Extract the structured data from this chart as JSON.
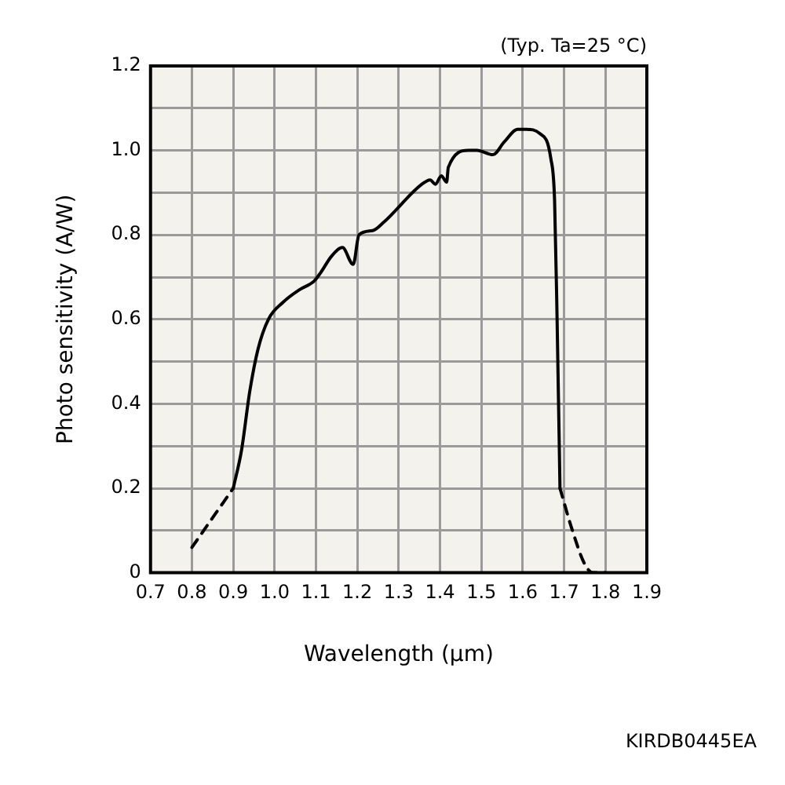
{
  "chart_data": {
    "type": "line",
    "xlabel": "Wavelength (μm)",
    "ylabel": "Photo sensitivity (A/W)",
    "annotations": [
      "(Typ. Ta=25 °C)",
      "KIRDB0445EA"
    ],
    "series": [
      {
        "color": "#000000",
        "line_style": "dashed",
        "x": [
          0.8,
          0.85,
          0.9
        ],
        "values": [
          0.06,
          0.13,
          0.2
        ]
      },
      {
        "color": "#000000",
        "line_style": "solid",
        "x": [
          0.9,
          0.92,
          0.94,
          0.96,
          0.985,
          1.02,
          1.06,
          1.095,
          1.111,
          1.138,
          1.164,
          1.19,
          1.204,
          1.237,
          1.264,
          1.356,
          1.376,
          1.389,
          1.403,
          1.416,
          1.42,
          1.469,
          1.489,
          1.528,
          1.555,
          1.588,
          1.608,
          1.641,
          1.668,
          1.677,
          1.683,
          1.69
        ],
        "values": [
          0.2,
          0.29,
          0.43,
          0.53,
          0.6,
          0.64,
          0.67,
          0.69,
          0.71,
          0.75,
          0.77,
          0.73,
          0.8,
          0.81,
          0.83,
          0.92,
          0.93,
          0.92,
          0.94,
          0.925,
          0.96,
          1.0,
          1.0,
          0.99,
          1.02,
          1.05,
          1.05,
          1.04,
          0.98,
          0.88,
          0.6,
          0.2
        ]
      },
      {
        "color": "#000000",
        "line_style": "dashed",
        "x": [
          1.69,
          1.72,
          1.75,
          1.77,
          1.8
        ],
        "values": [
          0.2,
          0.1,
          0.02,
          0.0,
          0.0
        ]
      }
    ],
    "xlim": [
      0.7,
      1.9
    ],
    "xticks": [
      0.7,
      0.8,
      0.9,
      {
        "value": 1.0,
        "label": "1.0"
      },
      1.1,
      1.2,
      1.3,
      1.4,
      1.5,
      1.6,
      1.7,
      1.8,
      1.9
    ],
    "ylim": [
      0,
      1.2
    ],
    "yticks": [
      0,
      {
        "value": 0.1,
        "label": null
      },
      0.2,
      {
        "value": 0.3,
        "label": null
      },
      0.4,
      {
        "value": 0.5,
        "label": null
      },
      0.6,
      {
        "value": 0.7,
        "label": null
      },
      0.8,
      {
        "value": 0.9,
        "label": null
      },
      {
        "value": 1.0,
        "label": "1.0"
      },
      {
        "value": 1.1,
        "label": null
      },
      1.2
    ],
    "grid": true,
    "legend": false,
    "marker": "none"
  }
}
